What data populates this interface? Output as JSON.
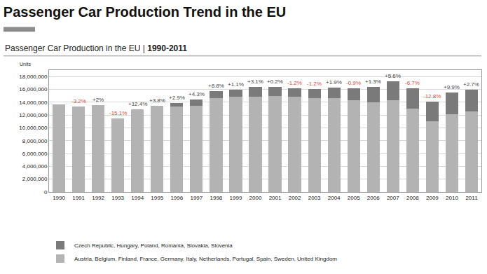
{
  "chart_data": {
    "type": "bar",
    "stacked": true,
    "title": "Passenger Car Production Trend in the EU",
    "subtitle": "Passenger Car Production in the EU | 1990-2011",
    "y_label": "Units",
    "categories": [
      "1990",
      "1991",
      "1992",
      "1993",
      "1994",
      "1995",
      "1996",
      "1997",
      "1998",
      "1999",
      "2000",
      "2001",
      "2002",
      "2003",
      "2004",
      "2005",
      "2006",
      "2007",
      "2008",
      "2009",
      "2010",
      "2011"
    ],
    "series": [
      {
        "name": "Austria, Belgium, Finland, France, Germany, Italy, Netherlands, Portugal, Spain, Sweden, United Kingdom",
        "color": "#b3b3b3",
        "values": [
          13700000,
          13300000,
          13500000,
          11500000,
          12900000,
          13400000,
          13300000,
          13400000,
          14600000,
          14800000,
          14900000,
          15000000,
          14800000,
          14600000,
          14600000,
          14300000,
          14000000,
          14300000,
          13000000,
          11000000,
          12100000,
          12600000
        ]
      },
      {
        "name": "Czech Republic, Hungary, Poland, Romania, Slovakia, Slovenia",
        "color": "#7a7a7a",
        "values": [
          null,
          null,
          null,
          null,
          null,
          null,
          600000,
          1000000,
          1100000,
          1100000,
          1500000,
          1400000,
          1400000,
          1400000,
          1700000,
          1900000,
          2400000,
          3000000,
          3200000,
          3100000,
          3400000,
          3300000
        ]
      }
    ],
    "annotations": [
      {
        "category": "1991",
        "text": "-3.2%"
      },
      {
        "category": "1992",
        "text": "+2%"
      },
      {
        "category": "1993",
        "text": "-15.1%"
      },
      {
        "category": "1994",
        "text": "+12.4%"
      },
      {
        "category": "1995",
        "text": "+3.8%"
      },
      {
        "category": "1996",
        "text": "+2.9%"
      },
      {
        "category": "1997",
        "text": "+4.3%"
      },
      {
        "category": "1998",
        "text": "+8.8%"
      },
      {
        "category": "1999",
        "text": "+1.1%"
      },
      {
        "category": "2000",
        "text": "+3.1%"
      },
      {
        "category": "2001",
        "text": "+0.2%"
      },
      {
        "category": "2002",
        "text": "-1.2%"
      },
      {
        "category": "2003",
        "text": "-1.2%"
      },
      {
        "category": "2004",
        "text": "+1.9%"
      },
      {
        "category": "2005",
        "text": "-0.9%"
      },
      {
        "category": "2006",
        "text": "+1.3%"
      },
      {
        "category": "2007",
        "text": "+5.6%"
      },
      {
        "category": "2008",
        "text": "-6.7%"
      },
      {
        "category": "2009",
        "text": "-12.8%"
      },
      {
        "category": "2010",
        "text": "+9.9%"
      },
      {
        "category": "2011",
        "text": "+2.7%"
      }
    ],
    "ylim": [
      0,
      19000000
    ],
    "yticks": [
      0,
      {
        "value": 2000000,
        "label": "2,000,000"
      },
      {
        "value": 4000000,
        "label": "4,000,000"
      },
      {
        "value": 6000000,
        "label": "6,000,000"
      },
      {
        "value": 8000000,
        "label": "8,000,000"
      },
      {
        "value": 10000000,
        "label": "10,000,000"
      },
      {
        "value": 12000000,
        "label": "12,000,000"
      },
      {
        "value": 14000000,
        "label": "14,000,000"
      },
      {
        "value": 16000000,
        "label": "16,000,000"
      },
      {
        "value": 18000000,
        "label": "18,000,000"
      }
    ],
    "grid": true,
    "legend": "bottom"
  }
}
